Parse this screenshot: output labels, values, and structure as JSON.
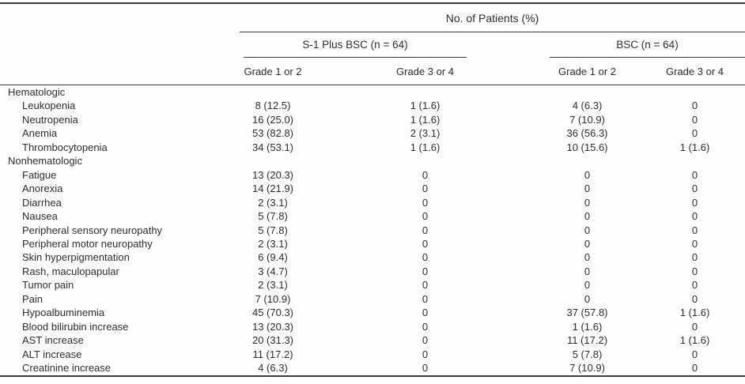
{
  "table": {
    "title_spanner": "No. of Patients (%)",
    "groups": [
      {
        "label": "S-1 Plus BSC (n = 64)"
      },
      {
        "label": "BSC (n = 64)"
      }
    ],
    "grade_headers": [
      "Grade 1 or 2",
      "Grade 3 or 4",
      "Grade 1 or 2",
      "Grade 3 or 4"
    ],
    "rows": [
      {
        "type": "section",
        "label": "Hematologic"
      },
      {
        "type": "item",
        "label": "Leukopenia",
        "values": [
          "8 (12.5)",
          "1 (1.6)",
          "4 (6.3)",
          "0"
        ]
      },
      {
        "type": "item",
        "label": "Neutropenia",
        "values": [
          "16 (25.0)",
          "1 (1.6)",
          "7 (10.9)",
          "0"
        ]
      },
      {
        "type": "item",
        "label": "Anemia",
        "values": [
          "53 (82.8)",
          "2 (3.1)",
          "36 (56.3)",
          "0"
        ]
      },
      {
        "type": "item",
        "label": "Thrombocytopenia",
        "values": [
          "34 (53.1)",
          "1 (1.6)",
          "10 (15.6)",
          "1 (1.6)"
        ]
      },
      {
        "type": "section",
        "label": "Nonhematologic"
      },
      {
        "type": "item",
        "label": "Fatigue",
        "values": [
          "13 (20.3)",
          "0",
          "0",
          "0"
        ]
      },
      {
        "type": "item",
        "label": "Anorexia",
        "values": [
          "14 (21.9)",
          "0",
          "0",
          "0"
        ]
      },
      {
        "type": "item",
        "label": "Diarrhea",
        "values": [
          "2 (3.1)",
          "0",
          "0",
          "0"
        ]
      },
      {
        "type": "item",
        "label": "Nausea",
        "values": [
          "5 (7.8)",
          "0",
          "0",
          "0"
        ]
      },
      {
        "type": "item",
        "label": "Peripheral sensory neuropathy",
        "values": [
          "5 (7.8)",
          "0",
          "0",
          "0"
        ]
      },
      {
        "type": "item",
        "label": "Peripheral motor neuropathy",
        "values": [
          "2 (3.1)",
          "0",
          "0",
          "0"
        ]
      },
      {
        "type": "item",
        "label": "Skin hyperpigmentation",
        "values": [
          "6 (9.4)",
          "0",
          "0",
          "0"
        ]
      },
      {
        "type": "item",
        "label": "Rash, maculopapular",
        "values": [
          "3 (4.7)",
          "0",
          "0",
          "0"
        ]
      },
      {
        "type": "item",
        "label": "Tumor pain",
        "values": [
          "2 (3.1)",
          "0",
          "0",
          "0"
        ]
      },
      {
        "type": "item",
        "label": "Pain",
        "values": [
          "7 (10.9)",
          "0",
          "0",
          "0"
        ]
      },
      {
        "type": "item",
        "label": "Hypoalbuminemia",
        "values": [
          "45 (70.3)",
          "0",
          "37 (57.8)",
          "1 (1.6)"
        ]
      },
      {
        "type": "item",
        "label": "Blood bilirubin increase",
        "values": [
          "13 (20.3)",
          "0",
          "1 (1.6)",
          "0"
        ]
      },
      {
        "type": "item",
        "label": "AST increase",
        "values": [
          "20 (31.3)",
          "0",
          "11 (17.2)",
          "1 (1.6)"
        ]
      },
      {
        "type": "item",
        "label": "ALT increase",
        "values": [
          "11 (17.2)",
          "0",
          "5 (7.8)",
          "0"
        ]
      },
      {
        "type": "item",
        "label": "Creatinine increase",
        "values": [
          "4 (6.3)",
          "0",
          "7 (10.9)",
          "0"
        ]
      }
    ]
  },
  "colors": {
    "rule": "#3c3c3c",
    "text": "#2e2e2e",
    "background": "#fdfdfd"
  }
}
